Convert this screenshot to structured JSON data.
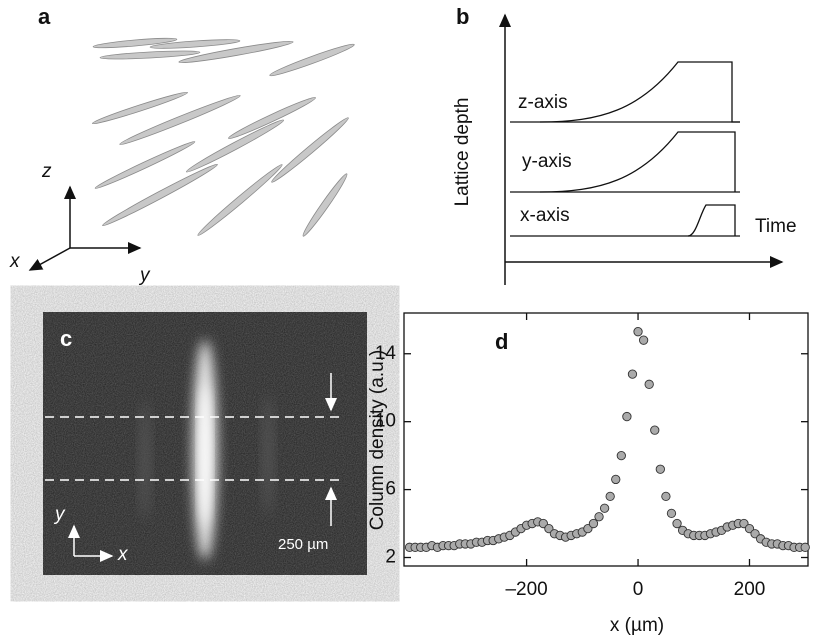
{
  "panel_a": {
    "label": "a",
    "axis_z": "z",
    "axis_x": "x",
    "axis_y": "y"
  },
  "panel_b": {
    "label": "b",
    "ylabel": "Lattice depth",
    "xlabel": "Time",
    "curves": [
      "z-axis",
      "y-axis",
      "x-axis"
    ]
  },
  "panel_c": {
    "label": "c",
    "scale_bar": "250 µm",
    "axis_y": "y",
    "axis_x": "x"
  },
  "chart_data": {
    "type": "scatter",
    "title": "d",
    "xlabel": "x (µm)",
    "ylabel": "Column density (a.u.)",
    "x": [
      -410,
      -400,
      -390,
      -380,
      -370,
      -360,
      -350,
      -340,
      -330,
      -320,
      -310,
      -300,
      -290,
      -280,
      -270,
      -260,
      -250,
      -240,
      -230,
      -220,
      -210,
      -200,
      -190,
      -180,
      -170,
      -160,
      -150,
      -140,
      -130,
      -120,
      -110,
      -100,
      -90,
      -80,
      -70,
      -60,
      -50,
      -40,
      -30,
      -20,
      -10,
      0,
      10,
      20,
      30,
      40,
      50,
      60,
      70,
      80,
      90,
      100,
      110,
      120,
      130,
      140,
      150,
      160,
      170,
      180,
      190,
      200,
      210,
      220,
      230,
      240,
      250,
      260,
      270,
      280,
      290,
      300
    ],
    "values": [
      2.6,
      2.6,
      2.6,
      2.6,
      2.7,
      2.6,
      2.7,
      2.7,
      2.7,
      2.8,
      2.8,
      2.8,
      2.9,
      2.9,
      3.0,
      3.0,
      3.1,
      3.2,
      3.3,
      3.5,
      3.7,
      3.9,
      4.0,
      4.1,
      4.0,
      3.7,
      3.4,
      3.3,
      3.2,
      3.3,
      3.4,
      3.5,
      3.7,
      4.0,
      4.4,
      4.9,
      5.6,
      6.6,
      8.0,
      10.3,
      12.8,
      15.3,
      14.8,
      12.2,
      9.5,
      7.2,
      5.6,
      4.6,
      4.0,
      3.6,
      3.4,
      3.3,
      3.3,
      3.3,
      3.4,
      3.5,
      3.6,
      3.8,
      3.9,
      4.0,
      4.0,
      3.7,
      3.4,
      3.1,
      2.9,
      2.8,
      2.8,
      2.7,
      2.7,
      2.6,
      2.6,
      2.6
    ],
    "color": "#aaaaaa",
    "xlim": [
      -420,
      305
    ],
    "ylim": [
      1.5,
      16.4
    ],
    "xticks": [
      {
        "value": -200,
        "label": "–200"
      },
      0,
      200
    ],
    "yticks": [
      2,
      6,
      10,
      14
    ]
  }
}
